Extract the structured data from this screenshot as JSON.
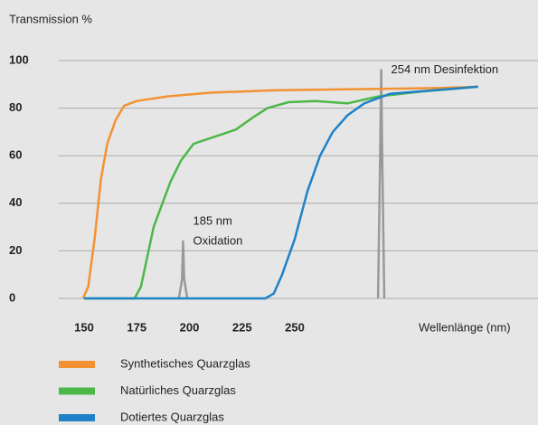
{
  "chart_data": {
    "type": "line",
    "y_label": "Transmission %",
    "x_label": "Wellenlänge (nm)",
    "xlim": [
      138,
      365
    ],
    "ylim": [
      0,
      100
    ],
    "xticks": [
      150,
      175,
      200,
      225,
      250
    ],
    "yticks": [
      0,
      20,
      40,
      60,
      80,
      100
    ],
    "grid": true,
    "series": [
      {
        "name": "Synthetisches Quarzglas",
        "color": "#f39232",
        "x": [
          149.5,
          152,
          155,
          158,
          161,
          165,
          169,
          175,
          190,
          210,
          240,
          280,
          320,
          337
        ],
        "values": [
          0,
          5,
          25,
          50,
          65,
          75,
          81,
          83,
          85,
          86.5,
          87.5,
          88,
          88.5,
          89
        ]
      },
      {
        "name": "Natürliches Quarzglas",
        "color": "#4cb848",
        "x": [
          150,
          174,
          177,
          183,
          191,
          196,
          202,
          212,
          222,
          230,
          237,
          247,
          260,
          275,
          290,
          310,
          337
        ],
        "values": [
          0,
          0,
          5,
          30,
          49,
          58,
          65,
          68,
          71,
          76,
          80,
          82.5,
          83,
          82,
          85,
          87,
          89
        ]
      },
      {
        "name": "Dotiertes Quarzglas",
        "color": "#1f82c8",
        "x": [
          150,
          236,
          240,
          244,
          250,
          256,
          262,
          268,
          275,
          283,
          295,
          337
        ],
        "values": [
          0,
          0,
          2,
          10,
          25,
          45,
          60,
          70,
          77,
          82,
          86,
          89
        ]
      }
    ],
    "spikes": [
      {
        "label": [
          "185 nm",
          "Oxidation"
        ],
        "color": "#999999",
        "x": [
          195,
          196.5,
          197,
          197.5,
          199
        ],
        "values": [
          0,
          8,
          24,
          8,
          0
        ]
      },
      {
        "label": [
          "254 nm Desinfektion"
        ],
        "color": "#999999",
        "x": [
          289.5,
          290.5,
          291,
          291.5,
          292.5
        ],
        "values": [
          0,
          60,
          96,
          60,
          0
        ]
      }
    ]
  }
}
